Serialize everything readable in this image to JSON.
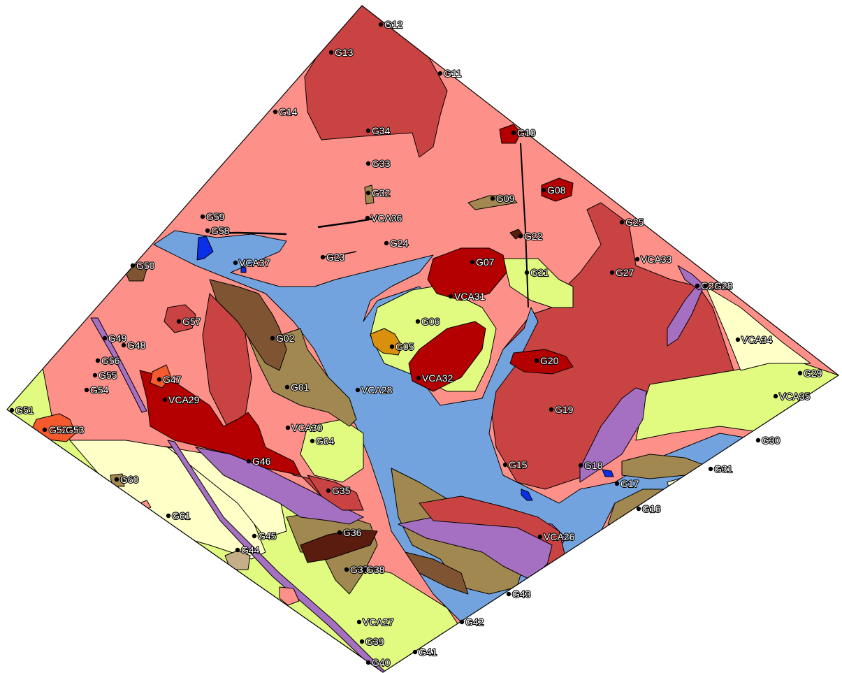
{
  "map": {
    "colors": {
      "lt_salmon": "#fd918a",
      "red_brown": "#c94343",
      "dark_red": "#b40000",
      "water": "#73a3de",
      "yellow_green": "#e1fb80",
      "pale_yellow": "#ffffc8",
      "olive_tan": "#a08850",
      "brown": "#7e5432",
      "dark_brown": "#5a1c0e",
      "purple": "#a56fc2",
      "blue": "#0a2fe8",
      "orange_red": "#f5592e",
      "orange": "#d9900c",
      "beige": "#c6ae88"
    },
    "sites": [
      {
        "id": "G12",
        "label": "G12"
      },
      {
        "id": "G13",
        "label": "G13"
      },
      {
        "id": "G11",
        "label": "G11"
      },
      {
        "id": "G14",
        "label": "G14"
      },
      {
        "id": "G34",
        "label": "G34"
      },
      {
        "id": "G10",
        "label": "G10"
      },
      {
        "id": "G33",
        "label": "G33"
      },
      {
        "id": "G32",
        "label": "G32"
      },
      {
        "id": "G09",
        "label": "G09"
      },
      {
        "id": "G08",
        "label": "G08"
      },
      {
        "id": "G59",
        "label": "G59"
      },
      {
        "id": "VCA36",
        "label": "VCA36"
      },
      {
        "id": "G58",
        "label": "G58"
      },
      {
        "id": "G25",
        "label": "G25"
      },
      {
        "id": "G22",
        "label": "G22"
      },
      {
        "id": "G24",
        "label": "G24"
      },
      {
        "id": "VCA37",
        "label": "VCA37"
      },
      {
        "id": "G23",
        "label": "G23"
      },
      {
        "id": "G07",
        "label": "G07"
      },
      {
        "id": "VCA33",
        "label": "VCA33"
      },
      {
        "id": "G50",
        "label": "G50"
      },
      {
        "id": "G21",
        "label": "G21"
      },
      {
        "id": "G27",
        "label": "G27"
      },
      {
        "id": "G26",
        "label": "G26"
      },
      {
        "id": "G28",
        "label": "G28"
      },
      {
        "id": "VCA31",
        "label": "VCA31"
      },
      {
        "id": "G57",
        "label": "G57"
      },
      {
        "id": "G06",
        "label": "G06"
      },
      {
        "id": "G02",
        "label": "G02"
      },
      {
        "id": "G49",
        "label": "G49"
      },
      {
        "id": "G48",
        "label": "G48"
      },
      {
        "id": "VCA34",
        "label": "VCA34"
      },
      {
        "id": "G05",
        "label": "G05"
      },
      {
        "id": "G20",
        "label": "G20"
      },
      {
        "id": "G56",
        "label": "G56"
      },
      {
        "id": "G29",
        "label": "G29"
      },
      {
        "id": "G55",
        "label": "G55"
      },
      {
        "id": "G47",
        "label": "G47"
      },
      {
        "id": "VCA32",
        "label": "VCA32"
      },
      {
        "id": "G01",
        "label": "G01"
      },
      {
        "id": "G54",
        "label": "G54"
      },
      {
        "id": "VCA28",
        "label": "VCA28"
      },
      {
        "id": "VCA35",
        "label": "VCA35"
      },
      {
        "id": "VCA29",
        "label": "VCA29"
      },
      {
        "id": "G51",
        "label": "G51"
      },
      {
        "id": "G19",
        "label": "G19"
      },
      {
        "id": "G52",
        "label": "G52"
      },
      {
        "id": "G53",
        "label": "G53"
      },
      {
        "id": "VCA30",
        "label": "VCA30"
      },
      {
        "id": "G04",
        "label": "G04"
      },
      {
        "id": "G30",
        "label": "G30"
      },
      {
        "id": "G46",
        "label": "G46"
      },
      {
        "id": "G15",
        "label": "G15"
      },
      {
        "id": "G18",
        "label": "G18"
      },
      {
        "id": "G31",
        "label": "G31"
      },
      {
        "id": "G60",
        "label": "G60"
      },
      {
        "id": "G17",
        "label": "G17"
      },
      {
        "id": "G35",
        "label": "G35"
      },
      {
        "id": "G16",
        "label": "G16"
      },
      {
        "id": "G61",
        "label": "G61"
      },
      {
        "id": "G36",
        "label": "G36"
      },
      {
        "id": "G45",
        "label": "G45"
      },
      {
        "id": "VCA26",
        "label": "VCA26"
      },
      {
        "id": "G44",
        "label": "G44"
      },
      {
        "id": "G37",
        "label": "G37"
      },
      {
        "id": "G38",
        "label": "G38"
      },
      {
        "id": "G43",
        "label": "G43"
      },
      {
        "id": "VCA27",
        "label": "VCA27"
      },
      {
        "id": "G42",
        "label": "G42"
      },
      {
        "id": "G39",
        "label": "G39"
      },
      {
        "id": "G41",
        "label": "G41"
      },
      {
        "id": "G40",
        "label": "G40"
      }
    ]
  }
}
